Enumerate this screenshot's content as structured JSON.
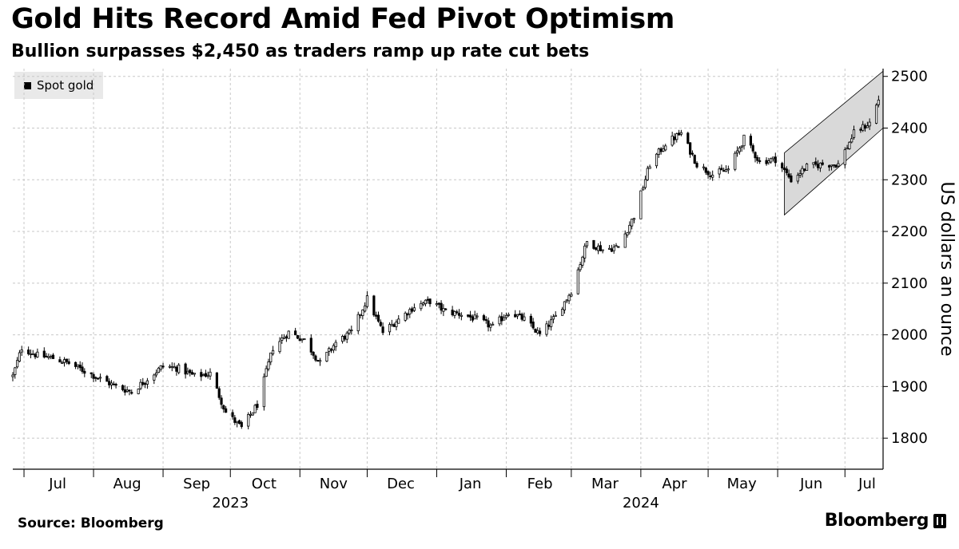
{
  "header": {
    "title": "Gold Hits Record Amid Fed Pivot Optimism",
    "subtitle": "Bullion surpasses $2,450 as traders ramp up rate cut bets"
  },
  "footer": {
    "source": "Source: Bloomberg",
    "brand": "Bloomberg"
  },
  "chart_data": {
    "type": "candlestick",
    "legend": [
      "Spot gold"
    ],
    "legend_position": "top-left",
    "ylabel": "US dollars an ounce",
    "y_axis_side": "right",
    "ylim": [
      1740,
      2515
    ],
    "yticks": [
      1800,
      1900,
      2000,
      2100,
      2200,
      2300,
      2400,
      2500
    ],
    "grid": true,
    "colors": {
      "up_fill": "#ffffff",
      "down_fill": "#000000",
      "stroke": "#000000",
      "channel_fill": "#d9d9d9"
    },
    "xlim": [
      "2023-06-26",
      "2024-07-18"
    ],
    "month_ticks": [
      "2023-07-01",
      "2023-08-01",
      "2023-09-01",
      "2023-10-01",
      "2023-11-01",
      "2023-12-01",
      "2024-01-01",
      "2024-02-01",
      "2024-03-01",
      "2024-04-01",
      "2024-05-01",
      "2024-06-01",
      "2024-07-01"
    ],
    "month_labels": [
      "Jul",
      "Aug",
      "Sep",
      "Oct",
      "Nov",
      "Dec",
      "Jan",
      "Feb",
      "Mar",
      "Apr",
      "May",
      "Jun",
      "Jul"
    ],
    "year_labels": [
      {
        "label": "2023",
        "date": "2023-10-01"
      },
      {
        "label": "2024",
        "date": "2024-04-01"
      }
    ],
    "trend_channel": {
      "upper": [
        [
          "2024-06-04",
          2352
        ],
        [
          "2024-07-18",
          2510
        ]
      ],
      "lower": [
        [
          "2024-06-04",
          2232
        ],
        [
          "2024-07-18",
          2400
        ]
      ]
    },
    "series": [
      {
        "name": "Spot gold",
        "weekly_closes": [
          [
            "2023-06-26",
            1920
          ],
          [
            "2023-06-30",
            1975
          ],
          [
            "2023-07-07",
            1960
          ],
          [
            "2023-07-14",
            1955
          ],
          [
            "2023-07-21",
            1945
          ],
          [
            "2023-07-28",
            1930
          ],
          [
            "2023-08-04",
            1915
          ],
          [
            "2023-08-11",
            1900
          ],
          [
            "2023-08-18",
            1890
          ],
          [
            "2023-08-25",
            1915
          ],
          [
            "2023-09-01",
            1940
          ],
          [
            "2023-09-08",
            1935
          ],
          [
            "2023-09-15",
            1920
          ],
          [
            "2023-09-22",
            1925
          ],
          [
            "2023-09-29",
            1850
          ],
          [
            "2023-10-06",
            1820
          ],
          [
            "2023-10-13",
            1865
          ],
          [
            "2023-10-20",
            1975
          ],
          [
            "2023-10-27",
            2005
          ],
          [
            "2023-11-03",
            1990
          ],
          [
            "2023-11-10",
            1945
          ],
          [
            "2023-11-17",
            1985
          ],
          [
            "2023-11-24",
            2005
          ],
          [
            "2023-12-01",
            2070
          ],
          [
            "2023-12-08",
            2005
          ],
          [
            "2023-12-15",
            2030
          ],
          [
            "2023-12-22",
            2055
          ],
          [
            "2023-12-29",
            2065
          ],
          [
            "2024-01-05",
            2045
          ],
          [
            "2024-01-12",
            2040
          ],
          [
            "2024-01-19",
            2030
          ],
          [
            "2024-01-26",
            2015
          ],
          [
            "2024-02-02",
            2045
          ],
          [
            "2024-02-09",
            2030
          ],
          [
            "2024-02-16",
            2000
          ],
          [
            "2024-02-23",
            2035
          ],
          [
            "2024-03-01",
            2085
          ],
          [
            "2024-03-08",
            2180
          ],
          [
            "2024-03-15",
            2165
          ],
          [
            "2024-03-22",
            2170
          ],
          [
            "2024-03-29",
            2230
          ],
          [
            "2024-04-05",
            2330
          ],
          [
            "2024-04-12",
            2370
          ],
          [
            "2024-04-19",
            2390
          ],
          [
            "2024-04-26",
            2330
          ],
          [
            "2024-05-03",
            2310
          ],
          [
            "2024-05-10",
            2320
          ],
          [
            "2024-05-17",
            2380
          ],
          [
            "2024-05-24",
            2335
          ],
          [
            "2024-05-31",
            2340
          ],
          [
            "2024-06-07",
            2300
          ],
          [
            "2024-06-14",
            2325
          ],
          [
            "2024-06-21",
            2330
          ],
          [
            "2024-06-28",
            2330
          ],
          [
            "2024-07-05",
            2390
          ],
          [
            "2024-07-12",
            2410
          ],
          [
            "2024-07-16",
            2455
          ]
        ]
      }
    ]
  }
}
